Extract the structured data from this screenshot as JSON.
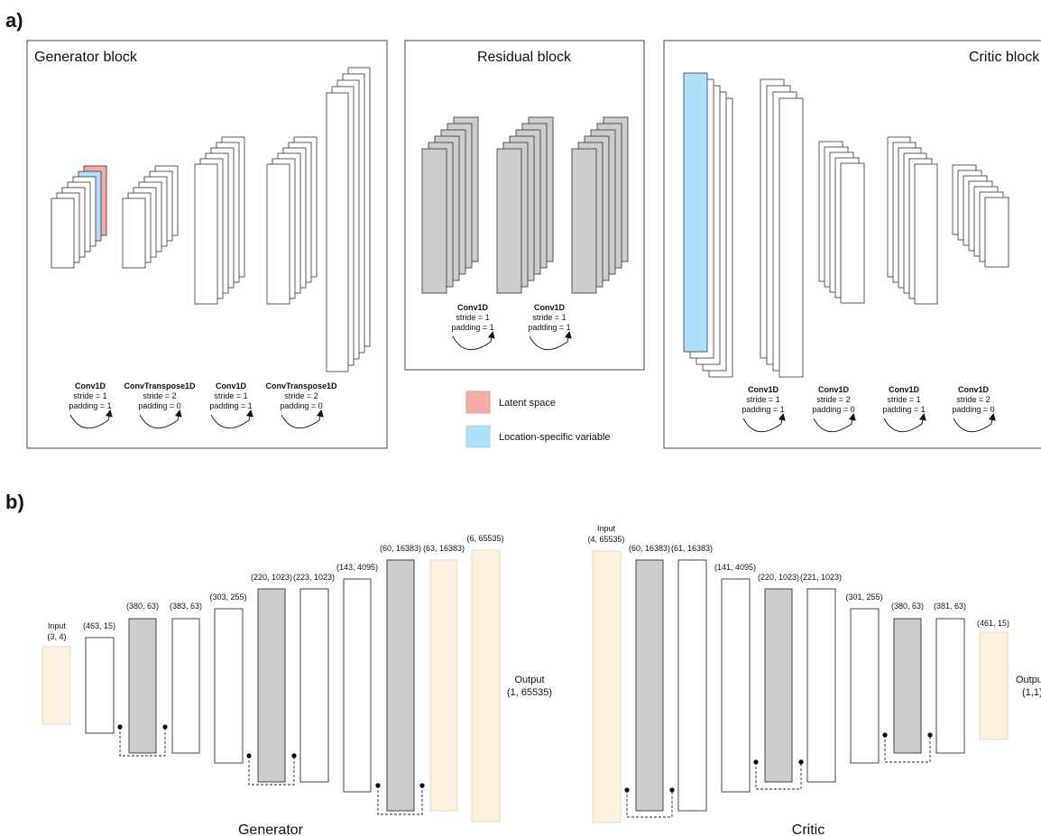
{
  "panel_a": {
    "label": "a)",
    "generator_block": {
      "title": "Generator block",
      "layers": [
        {
          "op": "Conv1D",
          "stride": "stride = 1",
          "padding": "padding = 1"
        },
        {
          "op": "ConvTranspose1D",
          "stride": "stride = 2",
          "padding": "padding = 0"
        },
        {
          "op": "Conv1D",
          "stride": "stride = 1",
          "padding": "padding = 1"
        },
        {
          "op": "ConvTranspose1D",
          "stride": "stride = 2",
          "padding": "padding = 0"
        }
      ]
    },
    "residual_block": {
      "title": "Residual block",
      "layers": [
        {
          "op": "Conv1D",
          "stride": "stride = 1",
          "padding": "padding = 1"
        },
        {
          "op": "Conv1D",
          "stride": "stride = 1",
          "padding": "padding = 1"
        }
      ]
    },
    "critic_block": {
      "title": "Critic block",
      "layers": [
        {
          "op": "Conv1D",
          "stride": "stride = 1",
          "padding": "padding = 1"
        },
        {
          "op": "Conv1D",
          "stride": "stride = 2",
          "padding": "padding = 0"
        },
        {
          "op": "Conv1D",
          "stride": "stride = 1",
          "padding": "padding = 1"
        },
        {
          "op": "Conv1D",
          "stride": "stride = 2",
          "padding": "padding = 0"
        }
      ]
    },
    "legend": [
      {
        "label": "Latent space",
        "color": "#f7aba5"
      },
      {
        "label": "Location-specific variable",
        "color": "#aee0fb"
      }
    ]
  },
  "panel_b": {
    "label": "b)",
    "generator": {
      "caption": "Generator",
      "input_label": "Input",
      "input_shape": "(3, 4)",
      "shapes": [
        "(463, 15)",
        "(380, 63)",
        "(383, 63)",
        "(303, 255)",
        "(220, 1023)",
        "(223, 1023)",
        "(143, 4095)",
        "(60, 16383)",
        "(63, 16383)",
        "(6, 65535)"
      ],
      "output_label": "Output",
      "output_shape": "(1, 65535)"
    },
    "critic": {
      "caption": "Critic",
      "input_label": "Input",
      "input_shape": "(4, 65535)",
      "shapes": [
        "(60, 16383)",
        "(61, 16383)",
        "(141, 4095)",
        "(220, 1023)",
        "(221, 1023)",
        "(301, 255)",
        "(380, 63)",
        "(381, 63)",
        "(461, 15)"
      ],
      "output_label": "Output",
      "output_shape": "(1,1)"
    }
  },
  "colors": {
    "gray": "#cccccc",
    "beige": "#fdf2e0",
    "beige_stroke": "#e8d8b8",
    "latent": "#f7aba5",
    "location": "#aee0fb",
    "stroke": "#333333"
  }
}
